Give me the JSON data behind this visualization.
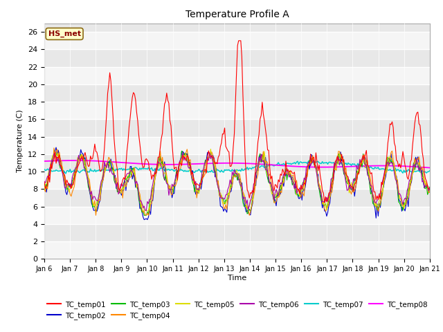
{
  "title": "Temperature Profile A",
  "xlabel": "Time",
  "ylabel": "Temperature (C)",
  "ylim": [
    0,
    27
  ],
  "yticks": [
    0,
    2,
    4,
    6,
    8,
    10,
    12,
    14,
    16,
    18,
    20,
    22,
    24,
    26
  ],
  "date_labels": [
    "Jan 6",
    "Jan 7",
    "Jan 8",
    "Jan 9",
    "Jan 10",
    "Jan 11",
    "Jan 12",
    "Jan 13",
    "Jan 14",
    "Jan 15",
    "Jan 16",
    "Jan 17",
    "Jan 18",
    "Jan 19",
    "Jan 20",
    "Jan 21"
  ],
  "annotation_text": "HS_met",
  "annotation_color": "#8B0000",
  "annotation_bg": "#FFFFCC",
  "bg_color": "#FFFFFF",
  "plot_bg": "#FFFFFF",
  "series_colors": {
    "TC_temp01": "#FF0000",
    "TC_temp02": "#0000CC",
    "TC_temp03": "#00BB00",
    "TC_temp04": "#FF8800",
    "TC_temp05": "#DDDD00",
    "TC_temp06": "#AA00AA",
    "TC_temp07": "#00CCCC",
    "TC_temp08": "#FF00FF"
  },
  "legend_entries": [
    "TC_temp01",
    "TC_temp02",
    "TC_temp03",
    "TC_temp04",
    "TC_temp05",
    "TC_temp06",
    "TC_temp07",
    "TC_temp08"
  ]
}
